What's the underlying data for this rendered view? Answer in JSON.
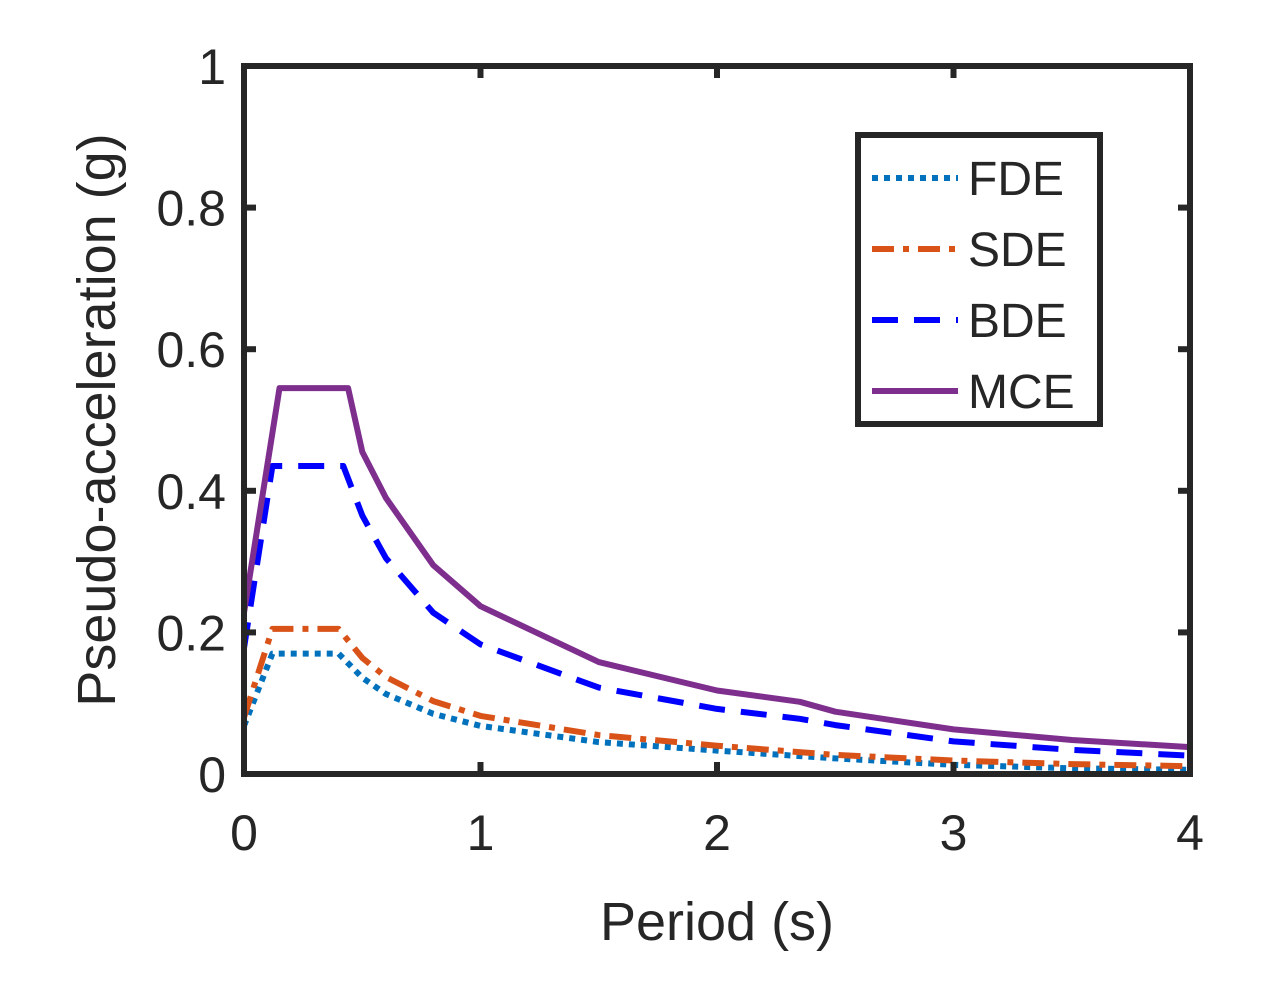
{
  "chart_data": {
    "type": "line",
    "title": "",
    "xlabel": "Period (s)",
    "ylabel": "Pseudo-acceleration (g)",
    "xlim": [
      0,
      4
    ],
    "ylim": [
      0,
      1
    ],
    "xticks": [
      "0",
      "1",
      "2",
      "3",
      "4"
    ],
    "yticks": [
      "0",
      "0.2",
      "0.4",
      "0.6",
      "0.8",
      "1"
    ],
    "grid": false,
    "legend_position": "top-right",
    "series": [
      {
        "name": "FDE",
        "color": "#0072BD",
        "style": "dotted",
        "x": [
          0,
          0.12,
          0.4,
          0.5,
          0.6,
          0.8,
          1.0,
          1.5,
          2.0,
          2.5,
          3.0,
          3.5,
          4.0
        ],
        "y": [
          0.068,
          0.17,
          0.17,
          0.136,
          0.113,
          0.085,
          0.068,
          0.045,
          0.033,
          0.022,
          0.013,
          0.008,
          0.006
        ]
      },
      {
        "name": "SDE",
        "color": "#D95319",
        "style": "dashdot",
        "x": [
          0,
          0.12,
          0.4,
          0.5,
          0.6,
          0.8,
          1.0,
          1.5,
          2.0,
          2.5,
          3.0,
          3.5,
          4.0
        ],
        "y": [
          0.08,
          0.205,
          0.205,
          0.164,
          0.137,
          0.103,
          0.082,
          0.055,
          0.04,
          0.027,
          0.019,
          0.014,
          0.011
        ]
      },
      {
        "name": "BDE",
        "color": "#0000FF",
        "style": "dashed",
        "x": [
          0,
          0.12,
          0.42,
          0.5,
          0.6,
          0.8,
          1.0,
          1.5,
          2.0,
          2.35,
          2.5,
          3.0,
          3.5,
          4.0
        ],
        "y": [
          0.178,
          0.435,
          0.435,
          0.365,
          0.305,
          0.228,
          0.183,
          0.122,
          0.092,
          0.078,
          0.069,
          0.046,
          0.034,
          0.026
        ]
      },
      {
        "name": "MCE",
        "color": "#7E2F8E",
        "style": "solid",
        "x": [
          0,
          0.15,
          0.44,
          0.5,
          0.6,
          0.8,
          1.0,
          1.5,
          2.0,
          2.35,
          2.5,
          3.0,
          3.5,
          4.0
        ],
        "y": [
          0.228,
          0.545,
          0.545,
          0.455,
          0.39,
          0.295,
          0.237,
          0.158,
          0.118,
          0.102,
          0.088,
          0.063,
          0.048,
          0.038
        ]
      }
    ]
  }
}
